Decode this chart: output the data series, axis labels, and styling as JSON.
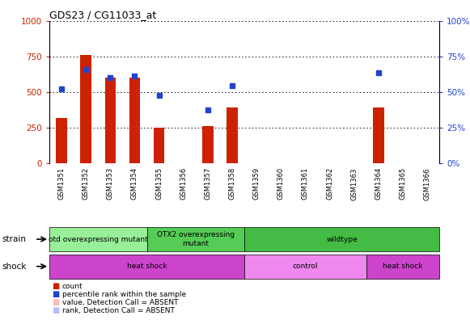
{
  "title": "GDS23 / CG11033_at",
  "samples": [
    "GSM1351",
    "GSM1352",
    "GSM1353",
    "GSM1354",
    "GSM1355",
    "GSM1356",
    "GSM1357",
    "GSM1358",
    "GSM1359",
    "GSM1360",
    "GSM1361",
    "GSM1362",
    "GSM1363",
    "GSM1364",
    "GSM1365",
    "GSM1366"
  ],
  "red_values": [
    320,
    760,
    600,
    600,
    250,
    0,
    260,
    390,
    0,
    0,
    0,
    0,
    0,
    390,
    0,
    0
  ],
  "blue_values": [
    520,
    660,
    600,
    610,
    475,
    0,
    375,
    545,
    0,
    0,
    0,
    0,
    0,
    635,
    0,
    0
  ],
  "ylim_left": [
    0,
    1000
  ],
  "ylim_right": [
    0,
    100
  ],
  "yticks_left": [
    0,
    250,
    500,
    750,
    1000
  ],
  "yticks_right": [
    0,
    25,
    50,
    75,
    100
  ],
  "red_color": "#cc2200",
  "blue_color": "#2244cc",
  "strain_groups": [
    {
      "label": "otd overexpressing mutant",
      "start": 0,
      "end": 4,
      "color": "#99ee99"
    },
    {
      "label": "OTX2 overexpressing\nmutant",
      "start": 4,
      "end": 8,
      "color": "#55cc55"
    },
    {
      "label": "wildtype",
      "start": 8,
      "end": 16,
      "color": "#44bb44"
    }
  ],
  "shock_groups": [
    {
      "label": "heat shock",
      "start": 0,
      "end": 8,
      "color": "#cc44cc"
    },
    {
      "label": "control",
      "start": 8,
      "end": 13,
      "color": "#ee88ee"
    },
    {
      "label": "heat shock",
      "start": 13,
      "end": 16,
      "color": "#cc44cc"
    }
  ],
  "strain_label": "strain",
  "shock_label": "shock",
  "legend_items": [
    {
      "color": "#cc2200",
      "label": "count"
    },
    {
      "color": "#2244cc",
      "label": "percentile rank within the sample"
    },
    {
      "color": "#ffbbbb",
      "label": "value, Detection Call = ABSENT"
    },
    {
      "color": "#bbbbff",
      "label": "rank, Detection Call = ABSENT"
    }
  ],
  "xaxis_bg": "#bbbbbb"
}
